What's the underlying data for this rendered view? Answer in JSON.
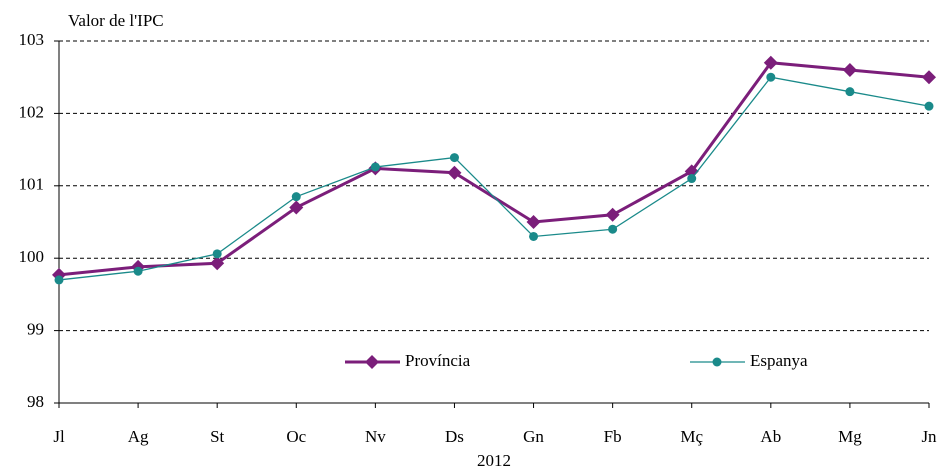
{
  "chart_data": {
    "type": "line",
    "y_axis_title": "Valor de l'IPC",
    "x_axis_title": "2012",
    "categories": [
      "Jl",
      "Ag",
      "St",
      "Oc",
      "Nv",
      "Ds",
      "Gn",
      "Fb",
      "Mç",
      "Ab",
      "Mg",
      "Jn"
    ],
    "series": [
      {
        "name": "Província",
        "color": "#7b1e7a",
        "marker": "diamond",
        "values": [
          99.77,
          99.88,
          99.93,
          100.7,
          101.24,
          101.18,
          100.5,
          100.6,
          101.2,
          102.7,
          102.6,
          102.5
        ]
      },
      {
        "name": "Espanya",
        "color": "#1a8a8a",
        "marker": "circle",
        "values": [
          99.7,
          99.82,
          100.06,
          100.85,
          101.26,
          101.39,
          100.3,
          100.4,
          101.1,
          102.5,
          102.3,
          102.1
        ]
      }
    ],
    "ylim": [
      98,
      103
    ],
    "yticks": [
      98,
      99,
      100,
      101,
      102,
      103
    ],
    "grid": true,
    "legend": "bottom"
  }
}
